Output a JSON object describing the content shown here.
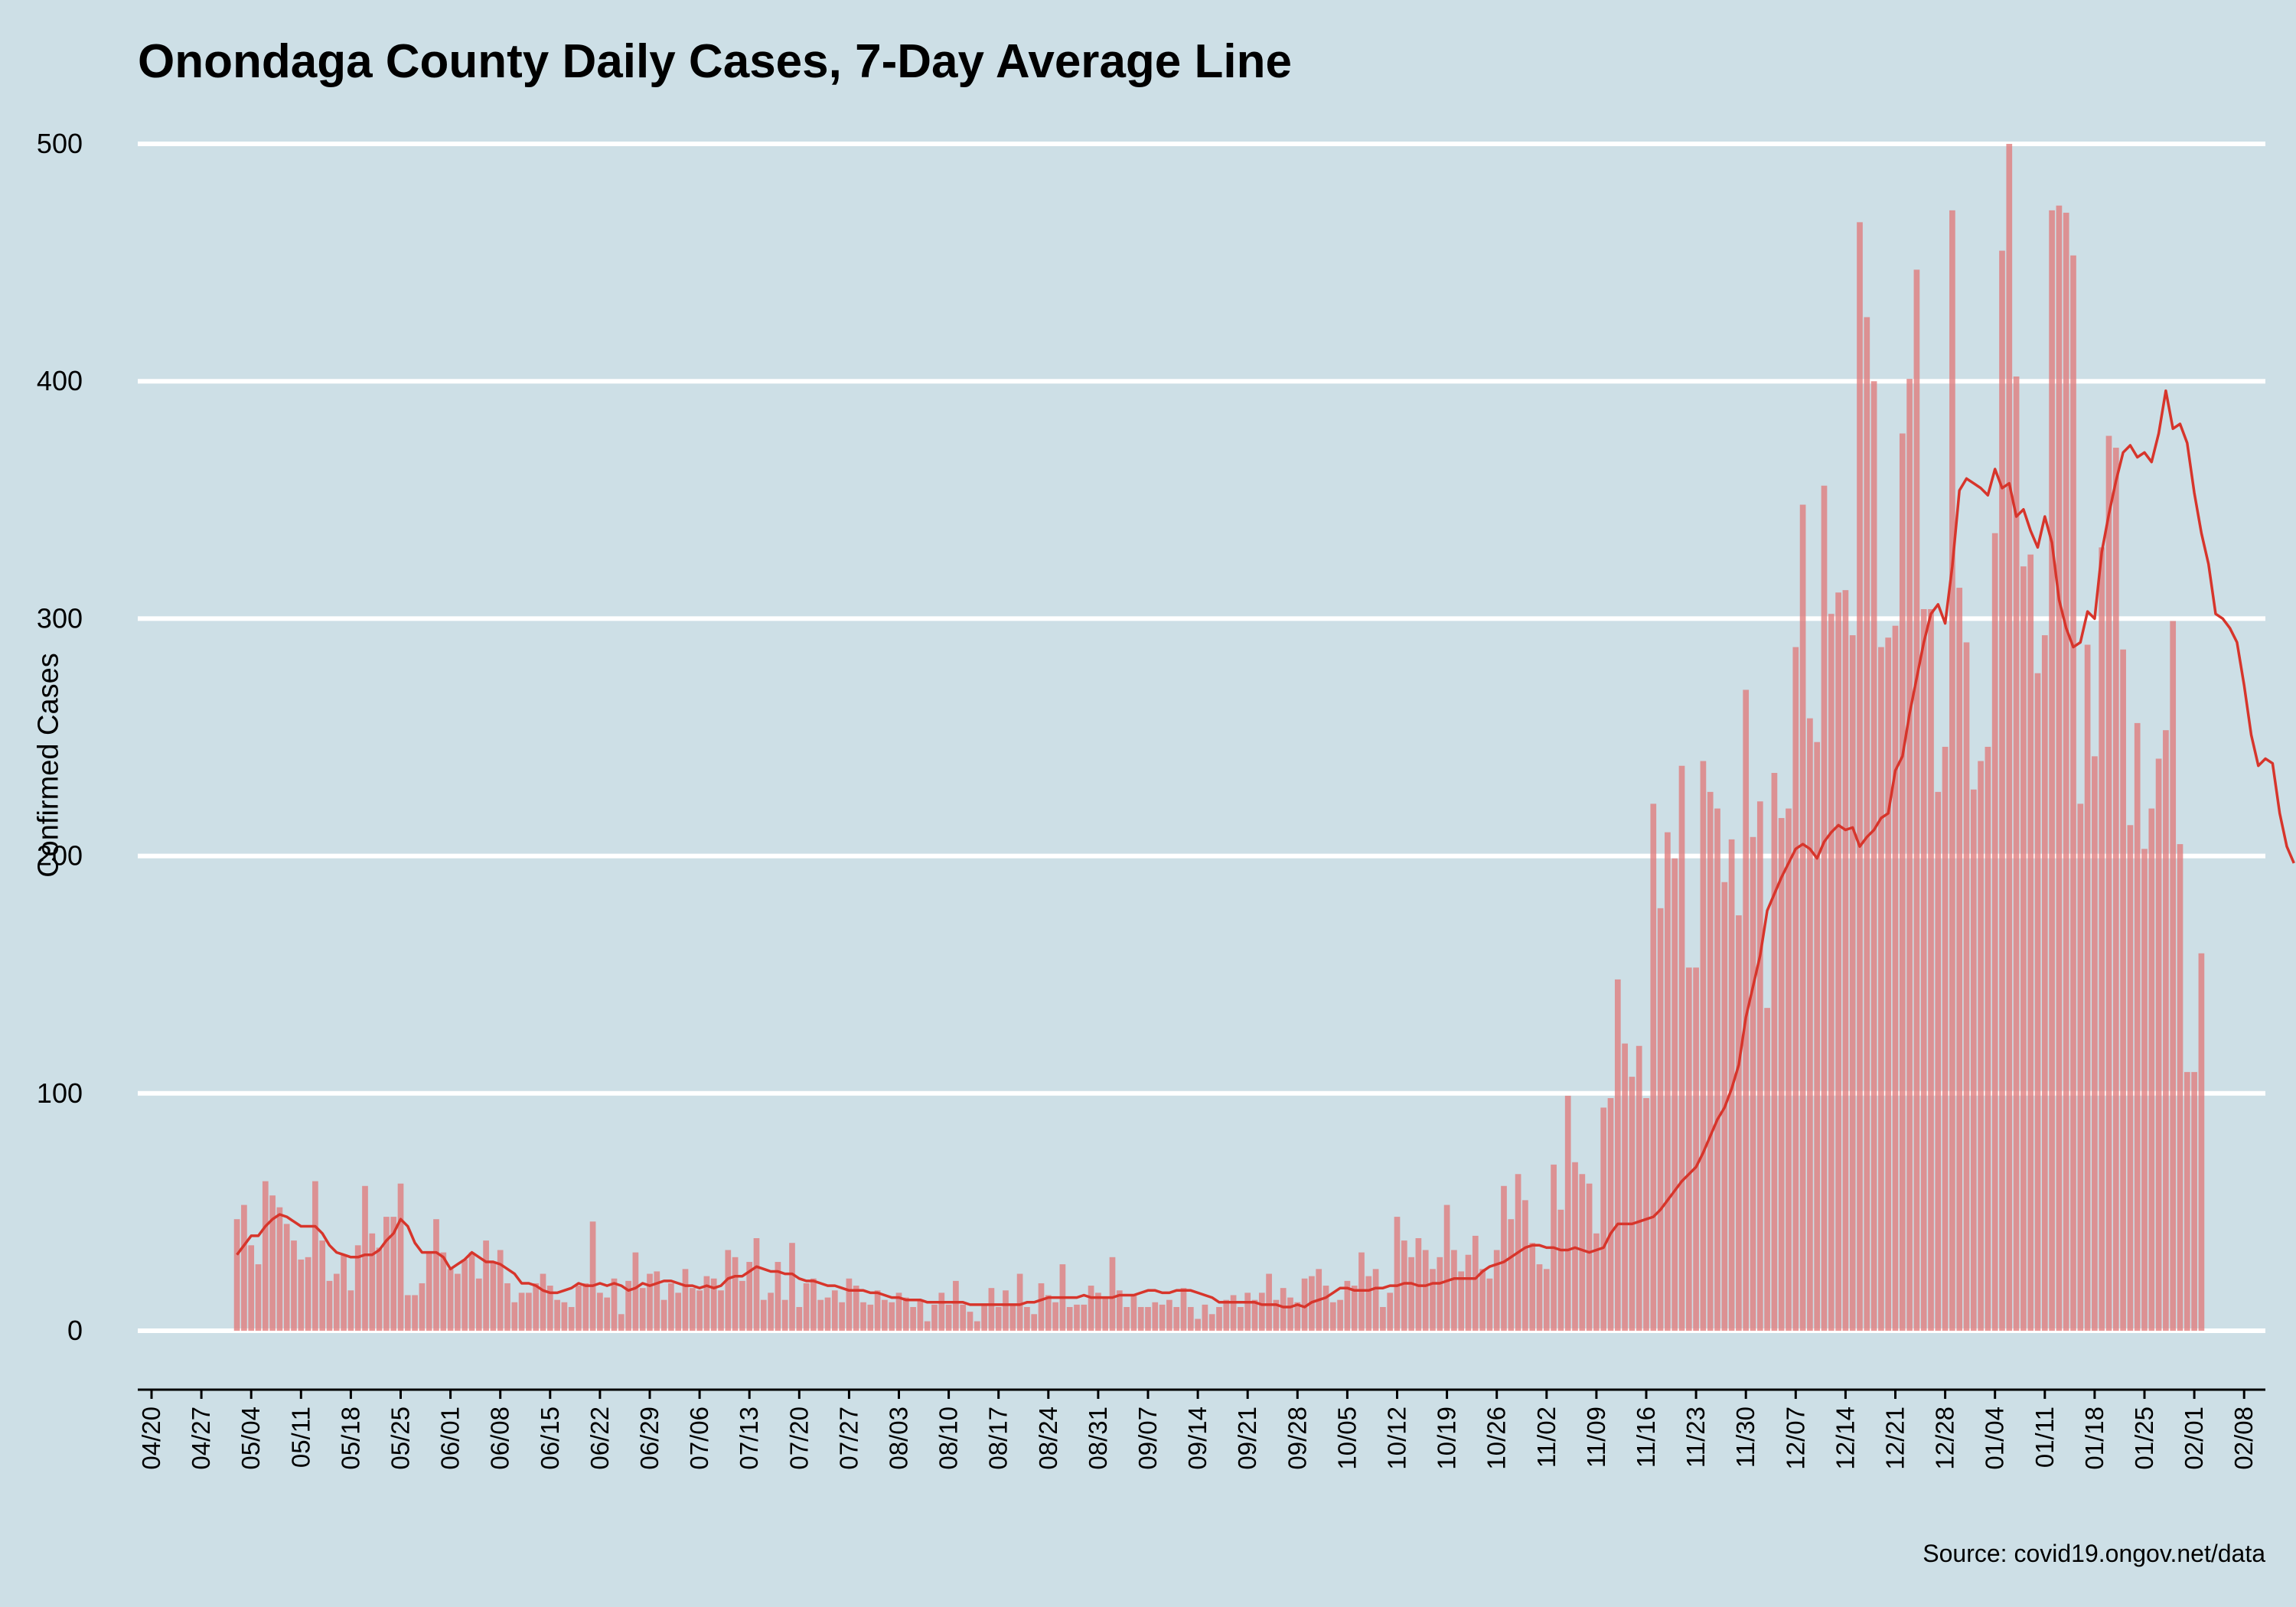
{
  "chart_data": {
    "type": "bar",
    "title": "Onondaga County Daily Cases, 7-Day Average Line",
    "ylabel": "Confirmed Cases",
    "xlabel": "",
    "source": "Source: covid19.ongov.net/data",
    "ylim": [
      0,
      500
    ],
    "yticks": [
      0,
      100,
      200,
      300,
      400,
      500
    ],
    "grid": "horizontal",
    "legend": "none",
    "x_start": "04/20",
    "x_ticks": [
      "04/20",
      "04/27",
      "05/04",
      "05/11",
      "05/18",
      "05/25",
      "06/01",
      "06/08",
      "06/15",
      "06/22",
      "06/29",
      "07/06",
      "07/13",
      "07/20",
      "07/27",
      "08/03",
      "08/10",
      "08/17",
      "08/24",
      "08/31",
      "09/07",
      "09/14",
      "09/21",
      "09/28",
      "10/05",
      "10/12",
      "10/19",
      "10/26",
      "11/02",
      "11/09",
      "11/16",
      "11/23",
      "11/30",
      "12/07",
      "12/14",
      "12/21",
      "12/28",
      "01/04",
      "01/11",
      "01/18",
      "01/25",
      "02/01",
      "02/08"
    ],
    "first_bar_date": "05/02",
    "series": [
      {
        "values": [
          47,
          53,
          36,
          28,
          63,
          57,
          52,
          45,
          38,
          30,
          31,
          63,
          38,
          21,
          24,
          32,
          17,
          36,
          61,
          41,
          35,
          48,
          48,
          62,
          15,
          15,
          20,
          33,
          47,
          33,
          26,
          24,
          30,
          33,
          22,
          38,
          29,
          34,
          20,
          12,
          16,
          16,
          20,
          24,
          19,
          13,
          12,
          10,
          19,
          20,
          46,
          16,
          14,
          22,
          7,
          21,
          33,
          18,
          24,
          25,
          13,
          20,
          16,
          26,
          18,
          17,
          23,
          22,
          17,
          34,
          31,
          21,
          29,
          39,
          13,
          16,
          29,
          13,
          37,
          10,
          20,
          22,
          13,
          14,
          17,
          12,
          22,
          19,
          12,
          11,
          17,
          13,
          12,
          16,
          14,
          10,
          13,
          4,
          11,
          16,
          11,
          21,
          11,
          8,
          4,
          11,
          18,
          10,
          17,
          11,
          24,
          10,
          7,
          20,
          15,
          12,
          28,
          10,
          11,
          11,
          19,
          16,
          14,
          31,
          17,
          10,
          15,
          10,
          10,
          12,
          11,
          13,
          10,
          18,
          10,
          5,
          11,
          7,
          10,
          13,
          15,
          10,
          16,
          13,
          16,
          24,
          13,
          18,
          14,
          12,
          22,
          23,
          26,
          19,
          12,
          13,
          21,
          19,
          33,
          23,
          26,
          10,
          16,
          48,
          38,
          31,
          39,
          34,
          26,
          31,
          53,
          34,
          25,
          32,
          40,
          26,
          22,
          34,
          61,
          47,
          66,
          55,
          37,
          28,
          26,
          70,
          51,
          99,
          71,
          66,
          62,
          41,
          94,
          98,
          148,
          121,
          107,
          120,
          98,
          222,
          178,
          210,
          199,
          238,
          153,
          153,
          240,
          227,
          220,
          189,
          207,
          175,
          270,
          208,
          223,
          136,
          235,
          216,
          220,
          288,
          348,
          258,
          248,
          356,
          302,
          311,
          312,
          293,
          467,
          427,
          400,
          288,
          292,
          297,
          378,
          401,
          447,
          304,
          304,
          227,
          246,
          472,
          313,
          290,
          228,
          240,
          246,
          336,
          455,
          500,
          402,
          322,
          327,
          277,
          293,
          472,
          474,
          471,
          453,
          222,
          289,
          242,
          330,
          377,
          372,
          287,
          213,
          256,
          203,
          220,
          241,
          253,
          299,
          205,
          109,
          109,
          159
        ]
      }
    ],
    "line_series": [
      {
        "values": [
          32,
          36,
          40,
          40,
          44,
          47,
          49,
          48,
          46,
          44,
          44,
          44,
          41,
          36,
          33,
          32,
          31,
          31,
          32,
          32,
          34,
          38,
          41,
          47,
          44,
          37,
          33,
          33,
          33,
          31,
          26,
          28,
          30,
          33,
          31,
          29,
          29,
          28,
          26,
          24,
          20,
          20,
          19,
          17,
          16,
          16,
          17,
          18,
          20,
          19,
          19,
          20,
          19,
          20,
          19,
          17,
          18,
          20,
          19,
          20,
          21,
          21,
          20,
          19,
          19,
          18,
          19,
          18,
          19,
          22,
          23,
          23,
          25,
          27,
          26,
          25,
          25,
          24,
          24,
          22,
          21,
          21,
          20,
          19,
          19,
          18,
          17,
          17,
          17,
          16,
          16,
          15,
          14,
          14,
          13,
          13,
          13,
          12,
          12,
          12,
          12,
          12,
          12,
          11,
          11,
          11,
          11,
          11,
          11,
          11,
          11,
          12,
          12,
          13,
          14,
          14,
          14,
          14,
          14,
          15,
          14,
          14,
          14,
          14,
          15,
          15,
          15,
          16,
          17,
          17,
          16,
          16,
          17,
          17,
          17,
          16,
          15,
          14,
          12,
          12,
          12,
          12,
          12,
          12,
          11,
          11,
          11,
          10,
          10,
          11,
          10,
          12,
          13,
          14,
          16,
          18,
          18,
          17,
          17,
          17,
          18,
          18,
          19,
          19,
          20,
          20,
          19,
          19,
          20,
          20,
          21,
          22,
          22,
          22,
          22,
          25,
          27,
          28,
          29,
          31,
          33,
          35,
          36,
          36,
          35,
          35,
          34,
          34,
          35,
          34,
          33,
          34,
          35,
          41,
          45,
          45,
          45,
          46,
          47,
          48,
          51,
          55,
          59,
          63,
          66,
          69,
          75,
          82,
          89,
          94,
          102,
          112,
          132,
          145,
          158,
          177,
          184,
          191,
          197,
          203,
          205,
          203,
          199,
          206,
          210,
          213,
          211,
          212,
          204,
          208,
          211,
          216,
          218,
          236,
          242,
          260,
          275,
          290,
          302,
          306,
          298,
          322,
          354,
          359,
          357,
          355,
          352,
          363,
          355,
          357,
          343,
          346,
          337,
          330,
          343,
          332,
          308,
          296,
          288,
          290,
          303,
          300,
          328,
          344,
          358,
          370,
          373,
          368,
          370,
          366,
          378,
          396,
          380,
          382,
          374,
          353,
          336,
          323,
          302,
          300,
          296,
          290,
          272,
          251,
          238,
          241,
          239,
          218,
          204,
          197
        ]
      }
    ],
    "colors": {
      "background": "#cddfe6",
      "bar": "#e07b7b",
      "line": "#d7352b",
      "grid": "#ffffff"
    }
  }
}
